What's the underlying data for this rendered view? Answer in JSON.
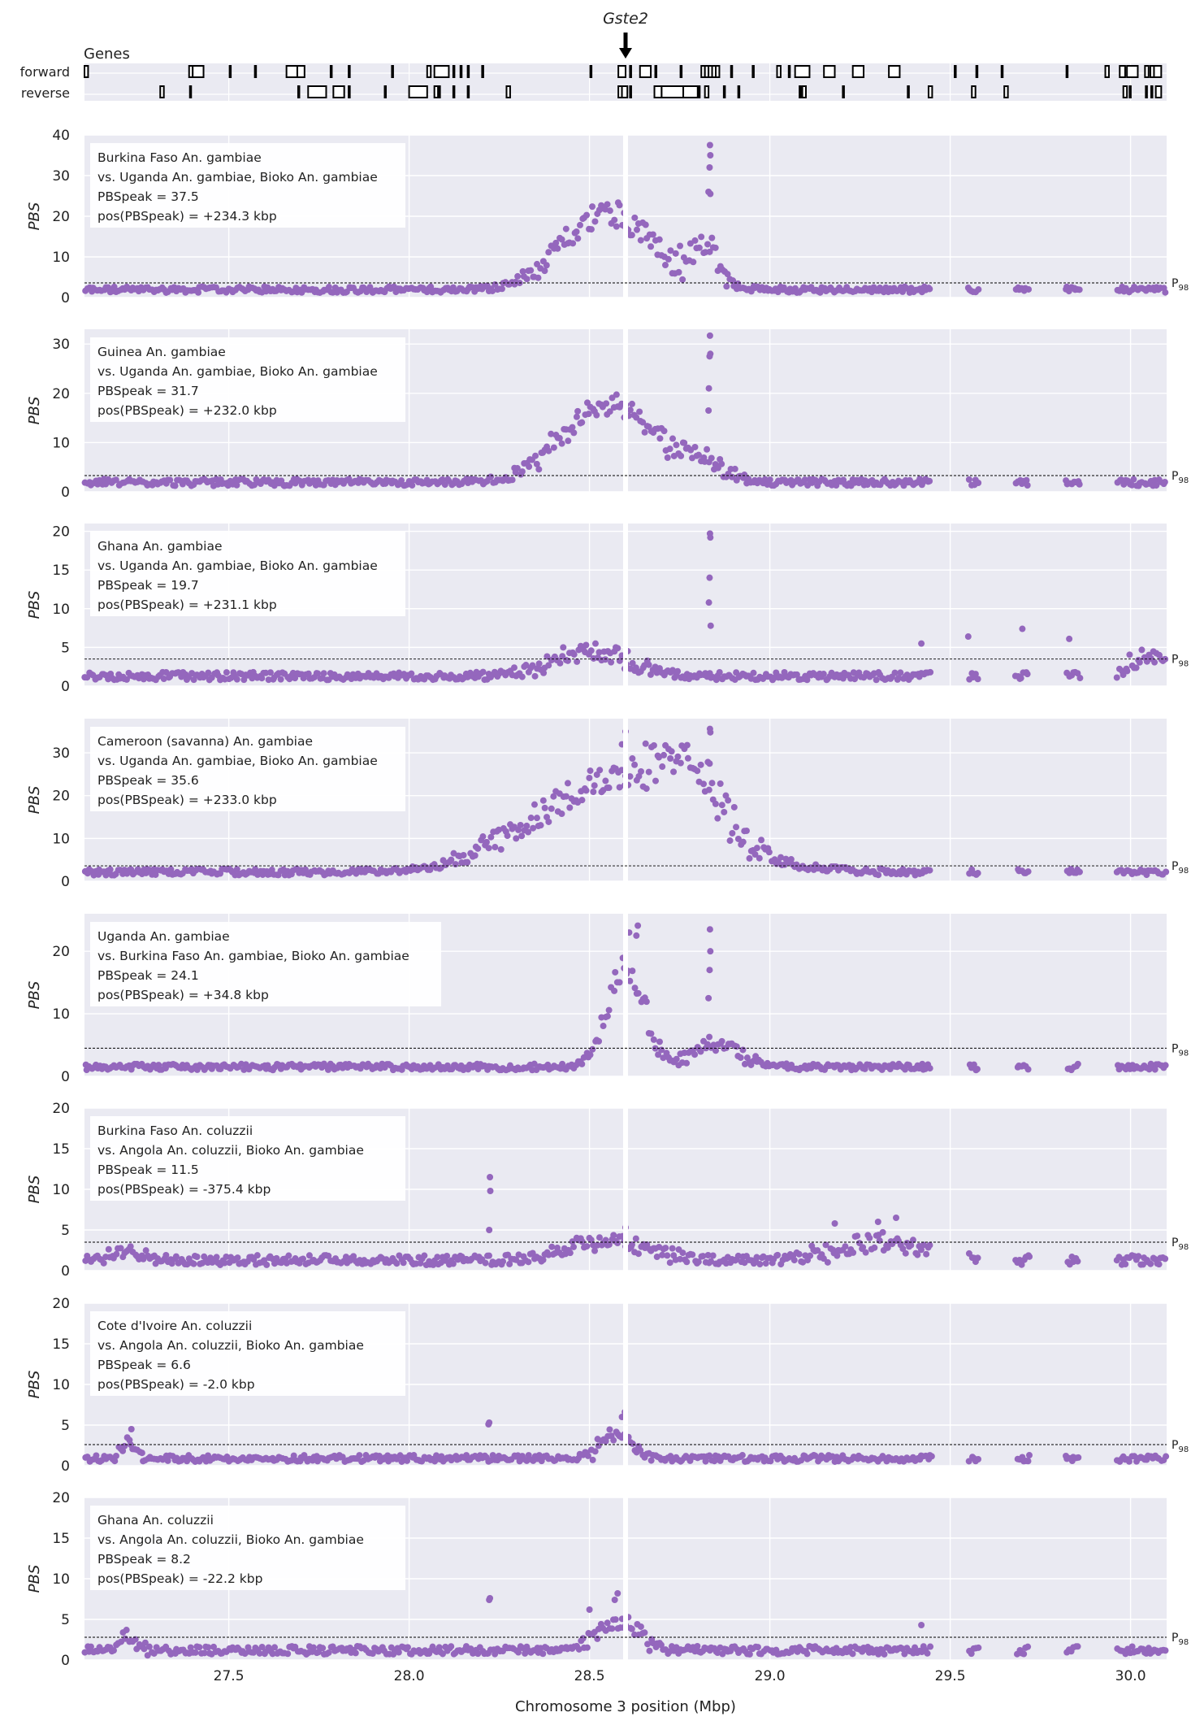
{
  "gene_track": {
    "title": "Genes",
    "forward_label": "forward",
    "reverse_label": "reverse",
    "highlight_gene": "Gste2",
    "highlight_pos": 28.6,
    "forward_genes": [
      [
        27.1,
        27.11
      ],
      [
        27.39,
        27.4
      ],
      [
        27.4,
        27.43
      ],
      [
        27.5,
        27.505
      ],
      [
        27.57,
        27.575
      ],
      [
        27.66,
        27.69
      ],
      [
        27.69,
        27.71
      ],
      [
        27.78,
        27.785
      ],
      [
        27.83,
        27.835
      ],
      [
        27.95,
        27.955
      ],
      [
        28.05,
        28.06
      ],
      [
        28.07,
        28.11
      ],
      [
        28.12,
        28.125
      ],
      [
        28.14,
        28.145
      ],
      [
        28.16,
        28.165
      ],
      [
        28.2,
        28.205
      ],
      [
        28.5,
        28.505
      ],
      [
        28.58,
        28.6
      ],
      [
        28.61,
        28.615
      ],
      [
        28.64,
        28.67
      ],
      [
        28.68,
        28.685
      ],
      [
        28.75,
        28.755
      ],
      [
        28.81,
        28.82
      ],
      [
        28.82,
        28.83
      ],
      [
        28.83,
        28.84
      ],
      [
        28.84,
        28.85
      ],
      [
        28.85,
        28.86
      ],
      [
        28.89,
        28.895
      ],
      [
        28.95,
        28.955
      ],
      [
        29.02,
        29.03
      ],
      [
        29.05,
        29.055
      ],
      [
        29.07,
        29.11
      ],
      [
        29.15,
        29.18
      ],
      [
        29.23,
        29.26
      ],
      [
        29.33,
        29.36
      ],
      [
        29.51,
        29.515
      ],
      [
        29.57,
        29.575
      ],
      [
        29.64,
        29.645
      ],
      [
        29.82,
        29.825
      ],
      [
        29.93,
        29.94
      ],
      [
        29.97,
        29.985
      ],
      [
        29.99,
        30.02
      ],
      [
        30.04,
        30.05
      ],
      [
        30.055,
        30.065
      ],
      [
        30.065,
        30.085
      ]
    ],
    "reverse_genes": [
      [
        27.31,
        27.32
      ],
      [
        27.39,
        27.395
      ],
      [
        27.69,
        27.695
      ],
      [
        27.72,
        27.77
      ],
      [
        27.79,
        27.82
      ],
      [
        27.83,
        27.835
      ],
      [
        27.93,
        27.935
      ],
      [
        28.0,
        28.05
      ],
      [
        28.07,
        28.08
      ],
      [
        28.08,
        28.085
      ],
      [
        28.12,
        28.125
      ],
      [
        28.16,
        28.165
      ],
      [
        28.27,
        28.28
      ],
      [
        28.58,
        28.59
      ],
      [
        28.59,
        28.605
      ],
      [
        28.61,
        28.615
      ],
      [
        28.68,
        28.7
      ],
      [
        28.7,
        28.76
      ],
      [
        28.76,
        28.8
      ],
      [
        28.8,
        28.805
      ],
      [
        28.82,
        28.83
      ],
      [
        28.87,
        28.875
      ],
      [
        28.91,
        28.915
      ],
      [
        29.08,
        29.085
      ],
      [
        29.09,
        29.1
      ],
      [
        29.2,
        29.205
      ],
      [
        29.38,
        29.385
      ],
      [
        29.44,
        29.45
      ],
      [
        29.56,
        29.57
      ],
      [
        29.65,
        29.66
      ],
      [
        29.98,
        29.99
      ],
      [
        29.995,
        30.0
      ],
      [
        30.04,
        30.045
      ],
      [
        30.055,
        30.06
      ],
      [
        30.07,
        30.085
      ]
    ]
  },
  "chart_data": [
    {
      "type": "scatter",
      "ylabel": "PBS",
      "ylim": [
        0,
        40
      ],
      "yticks": [
        0,
        10,
        20,
        30,
        40
      ],
      "p98": 3.6,
      "p98_label": "P98",
      "lines": [
        "Burkina Faso An. gambiae",
        "vs. Uganda An. gambiae, Bioko An. gambiae",
        "PBSpeak = 37.5",
        "pos(PBSpeak) = +234.3 kbp"
      ],
      "profile": {
        "base": 1.2,
        "noise": 1.5,
        "peaks": [
          [
            28.55,
            19,
            0.12,
            6
          ],
          [
            28.82,
            10,
            0.04,
            5
          ]
        ],
        "spikes": [
          [
            28.834,
            37.5
          ],
          [
            28.835,
            35.0
          ],
          [
            28.833,
            32.0
          ],
          [
            28.835,
            25.5
          ],
          [
            28.83,
            26.0
          ]
        ]
      }
    },
    {
      "type": "scatter",
      "ylabel": "PBS",
      "ylim": [
        0,
        33
      ],
      "yticks": [
        0,
        10,
        20,
        30
      ],
      "p98": 3.3,
      "p98_label": "P98",
      "lines": [
        "Guinea An. gambiae",
        "vs. Uganda An. gambiae, Bioko An. gambiae",
        "PBSpeak = 31.7",
        "pos(PBSpeak) = +232.0 kbp"
      ],
      "profile": {
        "base": 1.2,
        "noise": 1.4,
        "peaks": [
          [
            28.55,
            16,
            0.12,
            5
          ],
          [
            28.8,
            4.5,
            0.06,
            3
          ]
        ],
        "spikes": [
          [
            28.834,
            31.7
          ],
          [
            28.835,
            28.0
          ],
          [
            28.833,
            27.5
          ],
          [
            28.831,
            21.0
          ],
          [
            28.83,
            16.5
          ]
        ]
      }
    },
    {
      "type": "scatter",
      "ylabel": "PBS",
      "ylim": [
        0,
        21
      ],
      "yticks": [
        0,
        5,
        10,
        15,
        20
      ],
      "p98": 3.5,
      "p98_label": "P98",
      "lines": [
        "Ghana An. gambiae",
        "vs. Uganda An. gambiae, Bioko An. gambiae",
        "PBSpeak = 19.7",
        "pos(PBSpeak) = +231.1 kbp"
      ],
      "profile": {
        "base": 0.8,
        "noise": 1.0,
        "peaks": [
          [
            28.5,
            3.2,
            0.1,
            2
          ],
          [
            30.05,
            2.7,
            0.05,
            1.5
          ]
        ],
        "spikes": [
          [
            28.834,
            19.7
          ],
          [
            28.835,
            19.2
          ],
          [
            28.833,
            14.0
          ],
          [
            28.831,
            10.8
          ],
          [
            28.836,
            7.8
          ],
          [
            29.55,
            6.4
          ],
          [
            29.7,
            7.4
          ],
          [
            29.83,
            6.1
          ],
          [
            29.42,
            5.5
          ]
        ]
      }
    },
    {
      "type": "scatter",
      "ylabel": "PBS",
      "ylim": [
        0,
        38
      ],
      "yticks": [
        0,
        10,
        20,
        30
      ],
      "p98": 3.6,
      "p98_label": "P98",
      "lines": [
        "Cameroon (savanna) An. gambiae",
        "vs. Uganda An. gambiae, Bioko An. gambiae",
        "PBSpeak = 35.6",
        "pos(PBSpeak) = +233.0 kbp"
      ],
      "profile": {
        "base": 1.4,
        "noise": 1.5,
        "peaks": [
          [
            28.58,
            22,
            0.22,
            7
          ],
          [
            28.78,
            12,
            0.08,
            5
          ]
        ],
        "spikes": [
          [
            28.834,
            35.6
          ],
          [
            28.835,
            34.8
          ],
          [
            28.833,
            27.5
          ],
          [
            28.6,
            35.0
          ],
          [
            28.59,
            32.0
          ]
        ]
      }
    },
    {
      "type": "scatter",
      "ylabel": "PBS",
      "ylim": [
        0,
        26
      ],
      "yticks": [
        0,
        10,
        20
      ],
      "p98": 4.5,
      "p98_label": "P98",
      "lines": [
        "Uganda An. gambiae",
        "vs. Burkina Faso An. gambiae, Bioko An. gambiae",
        "PBSpeak = 24.1",
        "pos(PBSpeak) = +34.8 kbp"
      ],
      "profile": {
        "base": 1.0,
        "noise": 1.0,
        "peaks": [
          [
            28.6,
            16,
            0.05,
            4
          ],
          [
            28.85,
            4,
            0.06,
            2
          ]
        ],
        "spikes": [
          [
            28.634,
            24.1
          ],
          [
            28.63,
            22.5
          ],
          [
            28.61,
            23.0
          ],
          [
            28.834,
            23.5
          ],
          [
            28.835,
            20.0
          ],
          [
            28.833,
            17.0
          ],
          [
            28.83,
            12.5
          ]
        ]
      }
    },
    {
      "type": "scatter",
      "ylabel": "PBS",
      "ylim": [
        0,
        20
      ],
      "yticks": [
        0,
        5,
        10,
        15,
        20
      ],
      "p98": 3.5,
      "p98_label": "P98",
      "lines": [
        "Burkina Faso An. coluzzii",
        "vs. Angola An. coluzzii, Bioko An. gambiae",
        "PBSpeak = 11.5",
        "pos(PBSpeak) = -375.4 kbp"
      ],
      "profile": {
        "base": 0.7,
        "noise": 1.2,
        "peaks": [
          [
            28.55,
            2.5,
            0.1,
            1.5
          ],
          [
            29.3,
            2.2,
            0.12,
            2
          ],
          [
            27.22,
            1.5,
            0.03,
            1.5
          ]
        ],
        "spikes": [
          [
            28.224,
            11.5
          ],
          [
            28.225,
            9.8
          ],
          [
            28.222,
            5.0
          ],
          [
            29.35,
            6.5
          ],
          [
            29.3,
            6.0
          ],
          [
            29.18,
            5.8
          ],
          [
            28.6,
            5.3
          ]
        ]
      }
    },
    {
      "type": "scatter",
      "ylabel": "PBS",
      "ylim": [
        0,
        20
      ],
      "yticks": [
        0,
        5,
        10,
        15,
        20
      ],
      "p98": 2.6,
      "p98_label": "P98",
      "lines": [
        "Cote d'Ivoire An. coluzzii",
        "vs. Angola An. coluzzii, Bioko An. gambiae",
        "PBSpeak = 6.6",
        "pos(PBSpeak) = -2.0 kbp"
      ],
      "profile": {
        "base": 0.5,
        "noise": 0.8,
        "peaks": [
          [
            28.57,
            3,
            0.04,
            1.5
          ],
          [
            27.22,
            1.5,
            0.02,
            1.5
          ]
        ],
        "spikes": [
          [
            28.598,
            6.6
          ],
          [
            28.59,
            6.0
          ],
          [
            28.222,
            5.3
          ],
          [
            28.22,
            5.1
          ],
          [
            27.23,
            4.5
          ]
        ]
      }
    },
    {
      "type": "scatter",
      "ylabel": "PBS",
      "ylim": [
        0,
        20
      ],
      "yticks": [
        0,
        5,
        10,
        15,
        20
      ],
      "p98": 2.8,
      "p98_label": "P98",
      "lines": [
        "Ghana An. coluzzii",
        "vs. Angola An. coluzzii, Bioko An. gambiae",
        "PBSpeak = 8.2",
        "pos(PBSpeak) = -22.2 kbp"
      ],
      "profile": {
        "base": 0.7,
        "noise": 1.0,
        "peaks": [
          [
            28.58,
            3.5,
            0.06,
            2
          ],
          [
            27.22,
            1.5,
            0.03,
            1.5
          ]
        ],
        "spikes": [
          [
            28.578,
            8.2
          ],
          [
            28.57,
            7.4
          ],
          [
            28.224,
            7.6
          ],
          [
            28.222,
            7.4
          ],
          [
            28.5,
            6.2
          ],
          [
            29.42,
            4.3
          ]
        ]
      }
    }
  ],
  "x_axis": {
    "label": "Chromosome 3 position (Mbp)",
    "xlim": [
      27.1,
      30.1
    ],
    "ticks": [
      27.5,
      28.0,
      28.5,
      29.0,
      29.5,
      30.0
    ],
    "tick_labels": [
      "27.5",
      "28.0",
      "28.5",
      "29.0",
      "29.5",
      "30.0"
    ]
  },
  "colors": {
    "point": "#9467bd",
    "axes_bg": "#eaeaf2",
    "grid": "#ffffff",
    "gap": "#ffffff",
    "text": "#222222"
  },
  "gap_pos": 28.6
}
